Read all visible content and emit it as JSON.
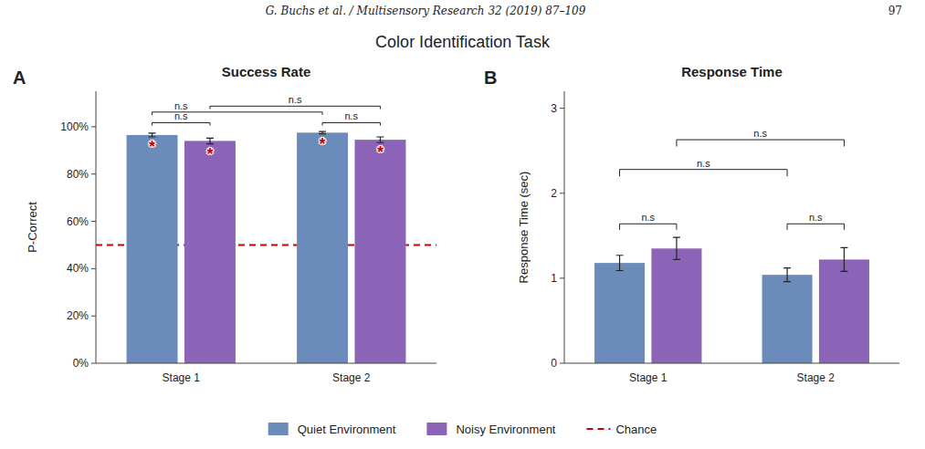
{
  "title": "Color Identification Task",
  "annotations": [
    {
      "text": "G. Buchs et al. / Multisensory Research 32 (2019) 87–109"
    },
    {
      "text": "97"
    }
  ],
  "chart_data": [
    {
      "type": "bar",
      "title": "Success Rate",
      "y_label": "P-Correct",
      "categories": [
        "Stage 1",
        "Stage 2"
      ],
      "series": [
        {
          "name": "Quiet Environment",
          "color": "#6b8cba",
          "values": [
            0.965,
            0.975
          ],
          "errors": [
            0.008,
            0.005
          ]
        },
        {
          "name": "Noisy Environment",
          "color": "#8b64b8",
          "values": [
            0.94,
            0.945
          ],
          "errors": [
            0.012,
            0.012
          ]
        },
        {
          "name": "Chance",
          "type": "line",
          "color": "#cc0000",
          "line_style": "dashed",
          "values": [
            0.5,
            0.5
          ]
        }
      ],
      "ylim": [
        0,
        1.15
      ],
      "yticks": [
        {
          "value": 0,
          "label": "0%"
        },
        {
          "value": 0.2,
          "label": "20%"
        },
        {
          "value": 0.4,
          "label": "40%"
        },
        {
          "value": 0.6,
          "label": "60%"
        },
        {
          "value": 0.8,
          "label": "80%"
        },
        {
          "value": 1.0,
          "label": "100%"
        }
      ],
      "grid": false,
      "legend": "bottom",
      "annotations": [
        {
          "text": "A"
        },
        {
          "text": "*",
          "category": 0,
          "series": 0,
          "color": "#cc0000"
        },
        {
          "text": "*",
          "category": 0,
          "series": 1,
          "color": "#cc0000"
        },
        {
          "text": "*",
          "category": 1,
          "series": 0,
          "color": "#cc0000"
        },
        {
          "text": "*",
          "category": 1,
          "series": 1,
          "color": "#cc0000"
        },
        {
          "text": "n.s",
          "between": [
            [
              0,
              0
            ],
            [
              0,
              1
            ]
          ],
          "y": 1.005,
          "height": 0.012
        },
        {
          "text": "n.s",
          "between": [
            [
              1,
              0
            ],
            [
              1,
              1
            ]
          ],
          "y": 1.005,
          "height": 0.012
        },
        {
          "text": "n.s",
          "between": [
            [
              0,
              0
            ],
            [
              1,
              0
            ]
          ],
          "y": 1.05,
          "height": 0.012
        },
        {
          "text": "n.s",
          "between": [
            [
              0,
              1
            ],
            [
              1,
              1
            ]
          ],
          "y": 1.075,
          "height": 0.012
        }
      ]
    },
    {
      "type": "bar",
      "title": "Response Time",
      "y_label": "Response Time (sec)",
      "categories": [
        "Stage 1",
        "Stage 2"
      ],
      "series": [
        {
          "color": "#6b8cba",
          "values": [
            1.18,
            1.04
          ],
          "errors": [
            0.09,
            0.08
          ]
        },
        {
          "color": "#8b64b8",
          "values": [
            1.35,
            1.22
          ],
          "errors": [
            0.13,
            0.14
          ]
        }
      ],
      "ylim": [
        0,
        3.2
      ],
      "yticks": [
        0,
        1,
        2,
        3
      ],
      "grid": false,
      "annotations": [
        {
          "text": "B"
        },
        {
          "text": "n.s",
          "between": [
            [
              0,
              0
            ],
            [
              0,
              1
            ]
          ],
          "y": 1.57,
          "height": 0.07
        },
        {
          "text": "n.s",
          "between": [
            [
              1,
              0
            ],
            [
              1,
              1
            ]
          ],
          "y": 1.57,
          "height": 0.07
        },
        {
          "text": "n.s",
          "between": [
            [
              0,
              0
            ],
            [
              1,
              0
            ]
          ],
          "y": 2.2,
          "height": 0.08
        },
        {
          "text": "n.s",
          "between": [
            [
              0,
              1
            ],
            [
              1,
              1
            ]
          ],
          "y": 2.55,
          "height": 0.08
        }
      ]
    }
  ]
}
